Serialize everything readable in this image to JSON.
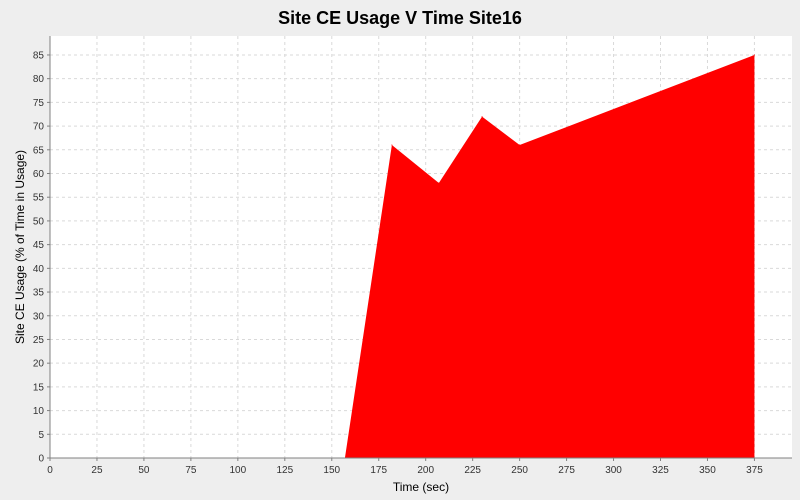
{
  "chart_data": {
    "type": "area",
    "title": "Site CE Usage V Time Site16",
    "xlabel": "Time (sec)",
    "ylabel": "Site CE Usage (% of Time in Usage)",
    "xlim": [
      0,
      395
    ],
    "ylim": [
      0,
      89
    ],
    "x_ticks": [
      0,
      25,
      50,
      75,
      100,
      125,
      150,
      175,
      200,
      225,
      250,
      275,
      300,
      325,
      350,
      375
    ],
    "y_ticks": [
      0,
      5,
      10,
      15,
      20,
      25,
      30,
      35,
      40,
      45,
      50,
      55,
      60,
      65,
      70,
      75,
      80,
      85
    ],
    "grid": true,
    "series": [
      {
        "color": "#ff0000",
        "points": [
          {
            "x": 157,
            "y": 0
          },
          {
            "x": 182,
            "y": 66
          },
          {
            "x": 207,
            "y": 58
          },
          {
            "x": 230,
            "y": 72
          },
          {
            "x": 250,
            "y": 66
          },
          {
            "x": 375,
            "y": 85
          }
        ]
      }
    ]
  }
}
